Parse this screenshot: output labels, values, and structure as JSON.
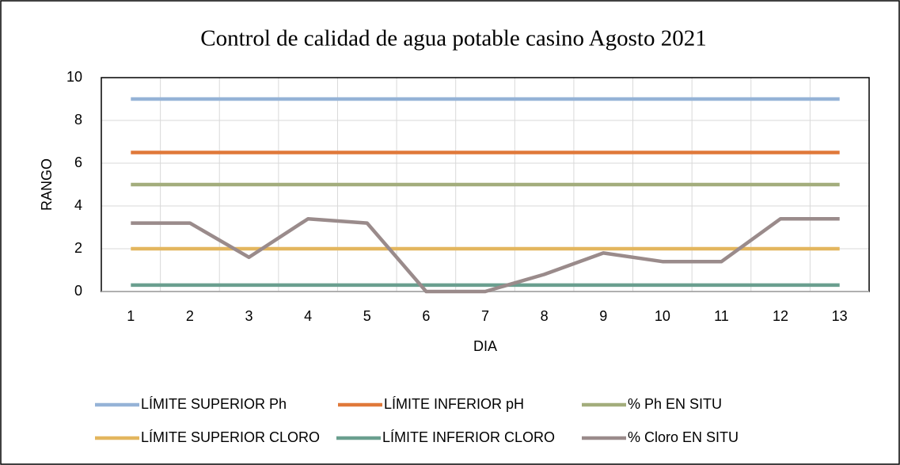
{
  "chart_data": {
    "type": "line",
    "title": "Control de calidad de agua potable casino Agosto 2021",
    "x_label": "DIA",
    "y_label": "RANGO",
    "categories": [
      "1",
      "2",
      "3",
      "4",
      "5",
      "6",
      "7",
      "8",
      "9",
      "10",
      "11",
      "12",
      "13"
    ],
    "series": [
      {
        "name": "LÍMITE SUPERIOR Ph",
        "color": "#95b3d7",
        "values": [
          9,
          9,
          9,
          9,
          9,
          9,
          9,
          9,
          9,
          9,
          9,
          9,
          9
        ]
      },
      {
        "name": "LÍMITE INFERIOR pH",
        "color": "#e0793a",
        "values": [
          6.5,
          6.5,
          6.5,
          6.5,
          6.5,
          6.5,
          6.5,
          6.5,
          6.5,
          6.5,
          6.5,
          6.5,
          6.5
        ]
      },
      {
        "name": "% Ph EN SITU",
        "color": "#a3ad7c",
        "values": [
          5,
          5,
          5,
          5,
          5,
          5,
          5,
          5,
          5,
          5,
          5,
          5,
          5
        ]
      },
      {
        "name": "LÍMITE SUPERIOR CLORO",
        "color": "#e3b65e",
        "values": [
          2,
          2,
          2,
          2,
          2,
          2,
          2,
          2,
          2,
          2,
          2,
          2,
          2
        ]
      },
      {
        "name": "LÍMITE INFERIOR CLORO",
        "color": "#6a9f8f",
        "values": [
          0.3,
          0.3,
          0.3,
          0.3,
          0.3,
          0.3,
          0.3,
          0.3,
          0.3,
          0.3,
          0.3,
          0.3,
          0.3
        ]
      },
      {
        "name": "% Cloro EN SITU",
        "color": "#9a8b8b",
        "values": [
          3.2,
          3.2,
          1.6,
          3.4,
          3.2,
          0,
          0,
          0.8,
          1.8,
          1.4,
          1.4,
          3.4,
          3.4
        ]
      }
    ],
    "ylim": [
      0,
      10
    ],
    "yticks": [
      0,
      2,
      4,
      6,
      8,
      10
    ],
    "grid": true,
    "legend": "bottom"
  }
}
